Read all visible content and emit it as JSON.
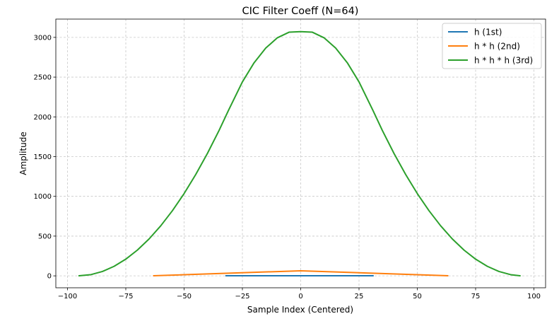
{
  "chart_data": {
    "type": "line",
    "title": "CIC Filter Coeff (N=64)",
    "xlabel": "Sample Index (Centered)",
    "ylabel": "Amplitude",
    "xlim": [
      -105,
      105
    ],
    "ylim": [
      -150,
      3230
    ],
    "xticks": [
      -100,
      -75,
      -50,
      -25,
      0,
      25,
      50,
      75,
      100
    ],
    "yticks": [
      0,
      500,
      1000,
      1500,
      2000,
      2500,
      3000
    ],
    "grid": true,
    "legend_position": "top-right",
    "series": [
      {
        "name": "h (1st)",
        "color": "#1f77b4",
        "x": [
          -32,
          31
        ],
        "y": [
          1,
          1
        ]
      },
      {
        "name": "h * h (2nd)",
        "color": "#ff7f0e",
        "x": [
          -63,
          0,
          63
        ],
        "y": [
          1,
          64,
          1
        ]
      },
      {
        "name": "h * h * h (3rd)",
        "color": "#2ca02c",
        "x": [
          -95,
          -90,
          -85,
          -80,
          -75,
          -70,
          -65,
          -60,
          -55,
          -50,
          -45,
          -40,
          -35,
          -31,
          -25,
          -20,
          -15,
          -10,
          -5,
          0,
          5,
          10,
          15,
          20,
          25,
          31,
          35,
          40,
          45,
          50,
          55,
          60,
          65,
          70,
          75,
          80,
          85,
          90,
          94
        ],
        "y": [
          1,
          15,
          55,
          120,
          210,
          325,
          465,
          630,
          820,
          1035,
          1275,
          1540,
          1830,
          2080,
          2440,
          2680,
          2865,
          2995,
          3065,
          3072,
          3065,
          2995,
          2865,
          2680,
          2440,
          2080,
          1830,
          1540,
          1275,
          1035,
          820,
          630,
          465,
          325,
          210,
          120,
          55,
          15,
          1
        ]
      }
    ]
  }
}
